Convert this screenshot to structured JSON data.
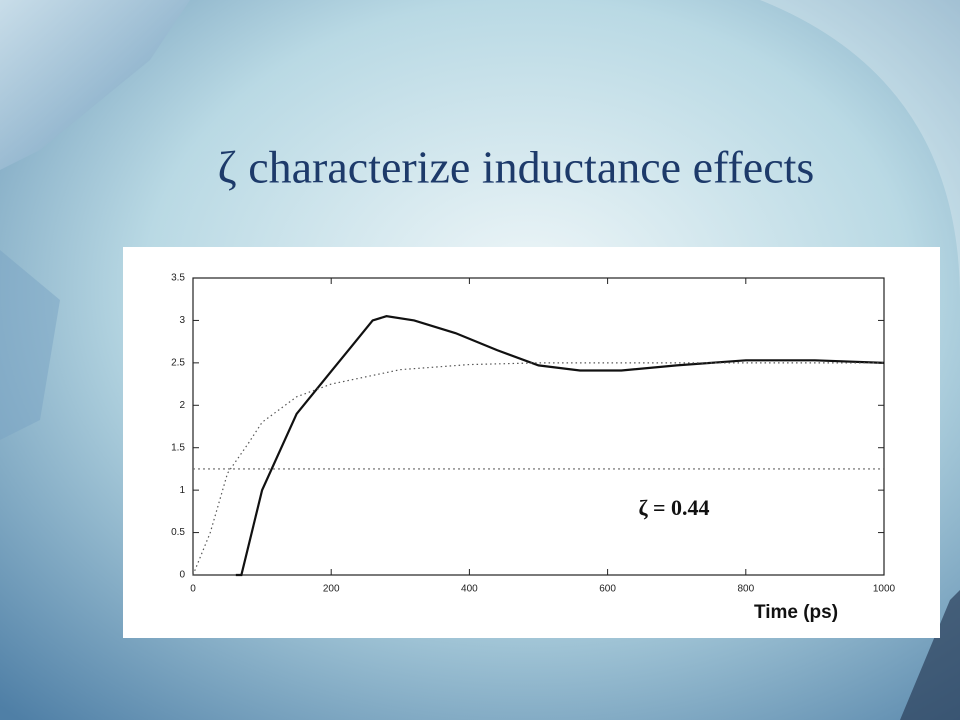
{
  "chart_data": {
    "type": "line",
    "title": "ζ characterize inductance effects",
    "xlabel": "Time (ps)",
    "annotation": "ζ = 0.44",
    "xlim": [
      0,
      1000
    ],
    "ylim": [
      0,
      3.5
    ],
    "xticks": [
      0,
      200,
      400,
      600,
      800,
      1000
    ],
    "yticks": [
      0,
      0.5,
      1,
      1.5,
      2,
      2.5,
      3,
      3.5
    ],
    "grid": false,
    "series": [
      {
        "style": "solid",
        "color": "#111111",
        "x": [
          62,
          70,
          100,
          150,
          200,
          230,
          260,
          280,
          320,
          380,
          440,
          500,
          560,
          620,
          700,
          800,
          900,
          1000
        ],
        "values": [
          0,
          0,
          1.0,
          1.9,
          2.4,
          2.7,
          3.0,
          3.05,
          3.0,
          2.85,
          2.65,
          2.47,
          2.41,
          2.41,
          2.47,
          2.53,
          2.53,
          2.5
        ]
      },
      {
        "style": "dotted",
        "color": "#555555",
        "x": [
          0,
          25,
          50,
          80,
          100,
          150,
          200,
          300,
          400,
          500,
          1000
        ],
        "values": [
          0,
          0.5,
          1.2,
          1.55,
          1.8,
          2.1,
          2.25,
          2.42,
          2.48,
          2.5,
          2.5
        ]
      },
      {
        "style": "dashed",
        "color": "#666666",
        "x": [
          0,
          1000
        ],
        "values": [
          1.25,
          1.25
        ]
      }
    ]
  }
}
